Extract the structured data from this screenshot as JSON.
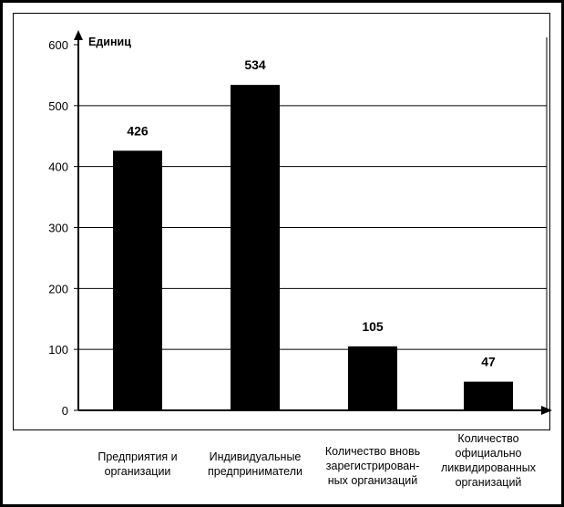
{
  "chart_data": {
    "type": "bar",
    "ylabel": "Единиц",
    "ylim": [
      0,
      600
    ],
    "yticks": [
      0,
      100,
      200,
      300,
      400,
      500,
      600
    ],
    "grid": true,
    "categories": [
      "Предприятия и организации",
      "Индивидуальные предприниматели",
      "Количество вновь зарегистрирован-ных организаций",
      "Количество официально ликвидированных организаций"
    ],
    "category_lines": [
      [
        "Предприятия и",
        "организации"
      ],
      [
        "Индивидуальные",
        "предприниматели"
      ],
      [
        "Количество вновь",
        "зарегистрирован-",
        "ных организаций"
      ],
      [
        "Количество",
        "официально",
        "ликвидированных",
        "организаций"
      ]
    ],
    "values": [
      426,
      534,
      105,
      47
    ],
    "bar_color": "#000000"
  }
}
